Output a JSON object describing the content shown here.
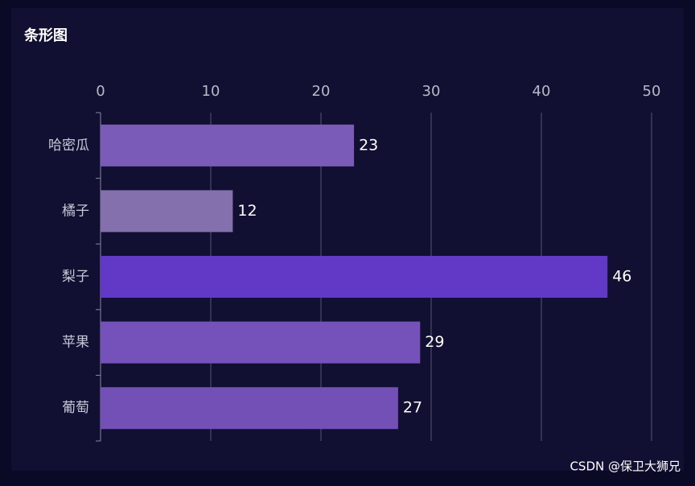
{
  "chart_data": {
    "type": "bar",
    "orientation": "horizontal",
    "title": "条形图",
    "categories": [
      "哈密瓜",
      "橘子",
      "梨子",
      "苹果",
      "葡萄"
    ],
    "values": [
      23,
      12,
      46,
      29,
      27
    ],
    "colors": [
      "#7a5cb8",
      "#8570ae",
      "#6238c6",
      "#7452ba",
      "#7250b6"
    ],
    "xlim": [
      0,
      50
    ],
    "xticks": [
      0,
      10,
      20,
      30,
      40,
      50
    ],
    "grid": true,
    "watermark": "CSDN @保卫大狮兄"
  }
}
